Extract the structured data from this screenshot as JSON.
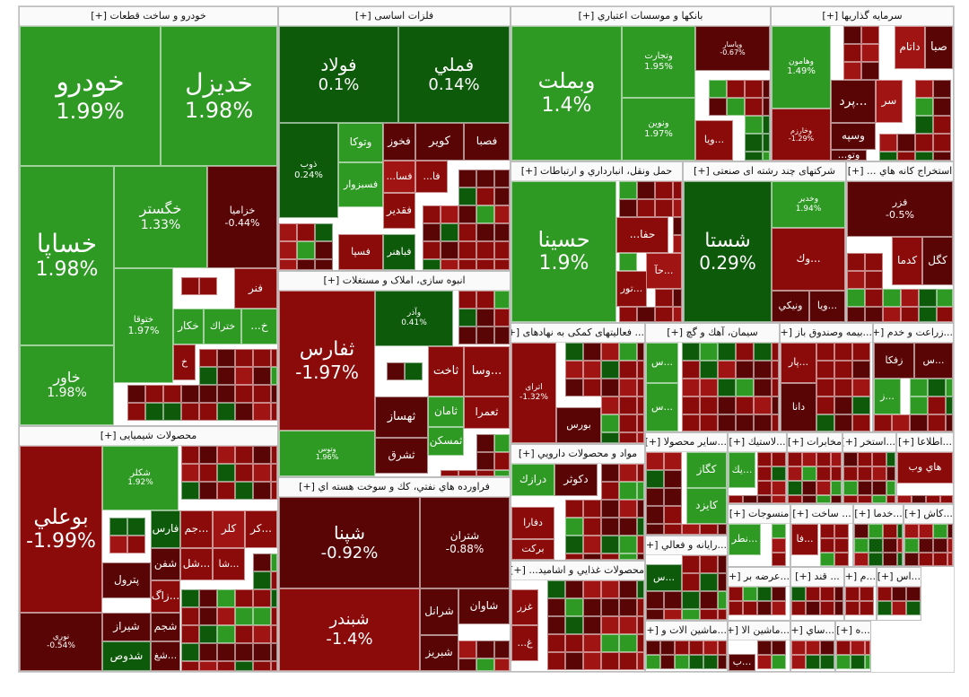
{
  "chart_data": {
    "type": "treemap",
    "title": "",
    "colors": {
      "strong_up": "#1a7a14",
      "up": "#2e9a24",
      "light_up": "#3fae2c",
      "dark_up": "#0d5a0a",
      "down": "#8b0a0a",
      "dark_down": "#5a0505",
      "mid_down": "#a01414"
    },
    "sectors": [
      {
        "name": "خودرو و ساخت قطعات [+]",
        "stocks": [
          {
            "symbol": "خودرو",
            "change": "1.99%"
          },
          {
            "symbol": "خديزل",
            "change": "1.98%"
          },
          {
            "symbol": "خساپا",
            "change": "1.98%"
          },
          {
            "symbol": "خگستر",
            "change": "1.33%"
          },
          {
            "symbol": "خزامیا",
            "change": "-0.44%"
          },
          {
            "symbol": "خاور",
            "change": "1.98%"
          },
          {
            "symbol": "ختوقا",
            "change": "1.97%"
          },
          {
            "symbol": "فنر",
            "change": ""
          },
          {
            "symbol": "خكار",
            "change": ""
          },
          {
            "symbol": "ختراك",
            "change": ""
          },
          {
            "symbol": "خ...",
            "change": ""
          },
          {
            "symbol": "خ",
            "change": ""
          }
        ]
      },
      {
        "name": "فلزات اساسی [+]",
        "stocks": [
          {
            "symbol": "فولاد",
            "change": "0.1%"
          },
          {
            "symbol": "فملي",
            "change": "0.14%"
          },
          {
            "symbol": "ذوب",
            "change": "0.24%"
          },
          {
            "symbol": "وتوكا",
            "change": ""
          },
          {
            "symbol": "فخوز",
            "change": ""
          },
          {
            "symbol": "كوير",
            "change": ""
          },
          {
            "symbol": "فصبا",
            "change": ""
          },
          {
            "symbol": "فسبزوار",
            "change": ""
          },
          {
            "symbol": "فقدیر",
            "change": ""
          },
          {
            "symbol": "فسپا",
            "change": ""
          },
          {
            "symbol": "فباهنر",
            "change": ""
          },
          {
            "symbol": "فا...",
            "change": ""
          },
          {
            "symbol": "فسا...",
            "change": ""
          }
        ]
      },
      {
        "name": "بانكها و موسسات اعتباري [+]",
        "stocks": [
          {
            "symbol": "وبملت",
            "change": "1.4%"
          },
          {
            "symbol": "وتجارت",
            "change": "1.95%"
          },
          {
            "symbol": "ونوين",
            "change": "1.97%"
          },
          {
            "symbol": "وپاسار",
            "change": "-0.67%"
          },
          {
            "symbol": "...ويا",
            "change": ""
          }
        ]
      },
      {
        "name": "سرمايه گذاريها [+]",
        "stocks": [
          {
            "symbol": "وهامون",
            "change": "1.49%"
          },
          {
            "symbol": "وخارزم",
            "change": "-1.29%"
          },
          {
            "symbol": "داتام",
            "change": ""
          },
          {
            "symbol": "صبا",
            "change": ""
          },
          {
            "symbol": "...پرد",
            "change": ""
          },
          {
            "symbol": "سر",
            "change": ""
          },
          {
            "symbol": "وسپه",
            "change": ""
          },
          {
            "symbol": "وتو...",
            "change": ""
          }
        ]
      },
      {
        "name": "انبوه سازی، املاک و مستغلات [+]",
        "stocks": [
          {
            "symbol": "ثفارس",
            "change": "-1.97%"
          },
          {
            "symbol": "وآذر",
            "change": "0.41%"
          },
          {
            "symbol": "وتوس",
            "change": "1.96%"
          },
          {
            "symbol": "ثاخت",
            "change": ""
          },
          {
            "symbol": "ثامان",
            "change": ""
          },
          {
            "symbol": "ثعمرا",
            "change": ""
          },
          {
            "symbol": "ثهساز",
            "change": ""
          },
          {
            "symbol": "ثمسكن",
            "change": ""
          },
          {
            "symbol": "ثشرق",
            "change": ""
          },
          {
            "symbol": "...وسا",
            "change": ""
          }
        ]
      },
      {
        "name": "حمل ونقل، انبارداري و ارتباطات [+]",
        "stocks": [
          {
            "symbol": "حسينا",
            "change": "1.9%"
          },
          {
            "symbol": "حفا...",
            "change": ""
          },
          {
            "symbol": "...حآ",
            "change": ""
          },
          {
            "symbol": "...تور",
            "change": ""
          }
        ]
      },
      {
        "name": "شرکتهای چند رشته ای صنعتی [+]",
        "stocks": [
          {
            "symbol": "شستا",
            "change": "0.29%"
          },
          {
            "symbol": "وخدير",
            "change": "1.94%"
          },
          {
            "symbol": "...وك",
            "change": ""
          },
          {
            "symbol": "...ويا",
            "change": ""
          },
          {
            "symbol": "ونيكي",
            "change": ""
          }
        ]
      },
      {
        "name": "استخراج كانه هاي ... [+]",
        "stocks": [
          {
            "symbol": "فزر",
            "change": "-0.5%"
          },
          {
            "symbol": "كدما",
            "change": ""
          },
          {
            "symbol": "كگل",
            "change": ""
          }
        ]
      },
      {
        "name": "محصولات شیمیایی [+]",
        "stocks": [
          {
            "symbol": "بوعلي",
            "change": "-1.99%"
          },
          {
            "symbol": "شكلر",
            "change": "1.92%"
          },
          {
            "symbol": "نوري",
            "change": "-0.54%"
          },
          {
            "symbol": "فارس",
            "change": ""
          },
          {
            "symbol": "...جم",
            "change": ""
          },
          {
            "symbol": "كلر",
            "change": ""
          },
          {
            "symbol": "...كر",
            "change": ""
          },
          {
            "symbol": "شفن",
            "change": ""
          },
          {
            "symbol": "پترول",
            "change": ""
          },
          {
            "symbol": "...شل",
            "change": ""
          },
          {
            "symbol": "...شا",
            "change": ""
          },
          {
            "symbol": "...زاگ",
            "change": ""
          },
          {
            "symbol": "شيراز",
            "change": ""
          },
          {
            "symbol": "شجم",
            "change": ""
          },
          {
            "symbol": "شدوص",
            "change": ""
          },
          {
            "symbol": "...شغ",
            "change": ""
          }
        ]
      },
      {
        "name": "فراورده هاي نفتي، كك و سوخت هسته اي [+]",
        "stocks": [
          {
            "symbol": "شپنا",
            "change": "-0.92%"
          },
          {
            "symbol": "شتران",
            "change": "-0.88%"
          },
          {
            "symbol": "شبندر",
            "change": "-1.4%"
          },
          {
            "symbol": "شاوان",
            "change": ""
          },
          {
            "symbol": "شرانل",
            "change": ""
          },
          {
            "symbol": "شبريز",
            "change": ""
          }
        ]
      },
      {
        "name": "... فعالیتهای کمکی به نهادهای [+]",
        "stocks": [
          {
            "symbol": "اترای",
            "change": "-1.32%"
          },
          {
            "symbol": "بورس",
            "change": ""
          }
        ]
      },
      {
        "name": "مواد و محصولات دارويي [+]",
        "stocks": [
          {
            "symbol": "درازك",
            "change": ""
          },
          {
            "symbol": "دكوثر",
            "change": ""
          },
          {
            "symbol": "دفارا",
            "change": ""
          },
          {
            "symbol": "بركت",
            "change": ""
          }
        ]
      },
      {
        "name": "محصولات غذايي و اشاميد... [+]",
        "stocks": [
          {
            "symbol": "غزر",
            "change": ""
          },
          {
            "symbol": "غ...",
            "change": ""
          }
        ]
      },
      {
        "name": "سيمان، آهك و گچ [+]",
        "stocks": [
          {
            "symbol": "...س",
            "change": ""
          },
          {
            "symbol": "...س",
            "change": ""
          }
        ]
      },
      {
        "name": "...بيمه وصندوق باز [+]",
        "stocks": [
          {
            "symbol": "...پار",
            "change": ""
          },
          {
            "symbol": "دانا",
            "change": ""
          }
        ]
      },
      {
        "name": "...زراعت و خدم [+]",
        "stocks": [
          {
            "symbol": "زفكا",
            "change": ""
          },
          {
            "symbol": "...س",
            "change": ""
          },
          {
            "symbol": "...ز",
            "change": ""
          }
        ]
      },
      {
        "name": "...سایر محصولا [+]",
        "stocks": [
          {
            "symbol": "كگاز",
            "change": ""
          },
          {
            "symbol": "كايزد",
            "change": ""
          }
        ]
      },
      {
        "name": "...لاستيك [+]",
        "stocks": [
          {
            "symbol": "...يك",
            "change": ""
          }
        ]
      },
      {
        "name": "مخابرات [+]",
        "stocks": []
      },
      {
        "name": "...استخر [+]",
        "stocks": []
      },
      {
        "name": "...اطلاعا [+]",
        "stocks": [
          {
            "symbol": "هاي وب",
            "change": ""
          }
        ]
      },
      {
        "name": "منسوجات [+]",
        "stocks": [
          {
            "symbol": "...نطر",
            "change": ""
          }
        ]
      },
      {
        "name": "... ساخت [+]",
        "stocks": [
          {
            "symbol": "...فا",
            "change": ""
          }
        ]
      },
      {
        "name": "...خدما [+]",
        "stocks": []
      },
      {
        "name": "...كاش [+]",
        "stocks": []
      },
      {
        "name": "...رايانه و فعالي [+]",
        "stocks": [
          {
            "symbol": "...س",
            "change": ""
          }
        ]
      },
      {
        "name": "...عرضه بر [+]",
        "stocks": []
      },
      {
        "name": "... قند [+]",
        "stocks": []
      },
      {
        "name": "...م [+]",
        "stocks": []
      },
      {
        "name": "...اس [+]",
        "stocks": []
      },
      {
        "name": "...ماشين الات و [+]",
        "stocks": []
      },
      {
        "name": "...ماشين الا [+]",
        "stocks": [
          {
            "symbol": "...ب",
            "change": ""
          }
        ]
      },
      {
        "name": "...ساي [+]",
        "stocks": []
      },
      {
        "name": "...ه [+]",
        "stocks": []
      }
    ]
  }
}
